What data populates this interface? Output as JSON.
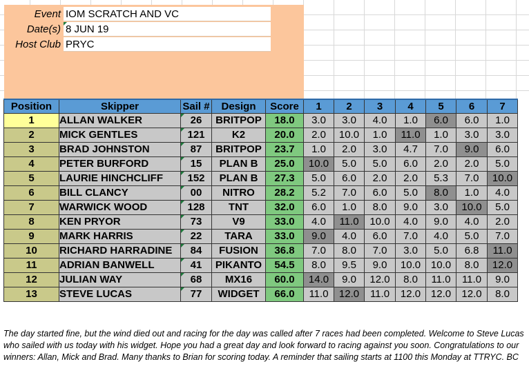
{
  "event_info": {
    "event_label": "Event",
    "event_value": "IOM SCRATCH AND VC",
    "date_label": "Date(s)",
    "date_value": "8 JUN 19",
    "club_label": "Host Club",
    "club_value": "PRYC"
  },
  "table": {
    "headers": [
      "Position",
      "Skipper",
      "Sail #",
      "Design",
      "Score",
      "1",
      "2",
      "3",
      "4",
      "5",
      "6",
      "7"
    ],
    "rows": [
      {
        "position": "1",
        "skipper": "ALLAN WALKER",
        "sail": "26",
        "design": "BRITPOP",
        "score": "18.0",
        "races": [
          "3.0",
          "3.0",
          "4.0",
          "1.0",
          "6.0",
          "6.0",
          "1.0"
        ],
        "discard": 4
      },
      {
        "position": "2",
        "skipper": "MICK GENTLES",
        "sail": "121",
        "design": "K2",
        "score": "20.0",
        "races": [
          "2.0",
          "10.0",
          "1.0",
          "11.0",
          "1.0",
          "3.0",
          "3.0"
        ],
        "discard": 3
      },
      {
        "position": "3",
        "skipper": "BRAD JOHNSTON",
        "sail": "87",
        "design": "BRITPOP",
        "score": "23.7",
        "races": [
          "1.0",
          "2.0",
          "3.0",
          "4.7",
          "7.0",
          "9.0",
          "6.0"
        ],
        "discard": 5
      },
      {
        "position": "4",
        "skipper": "PETER BURFORD",
        "sail": "15",
        "design": "PLAN B",
        "score": "25.0",
        "races": [
          "10.0",
          "5.0",
          "5.0",
          "6.0",
          "2.0",
          "2.0",
          "5.0"
        ],
        "discard": 0
      },
      {
        "position": "5",
        "skipper": "LAURIE HINCHCLIFF",
        "sail": "152",
        "design": "PLAN B",
        "score": "27.3",
        "races": [
          "5.0",
          "6.0",
          "2.0",
          "2.0",
          "5.3",
          "7.0",
          "10.0"
        ],
        "discard": 6
      },
      {
        "position": "6",
        "skipper": "BILL CLANCY",
        "sail": "00",
        "design": "NITRO",
        "score": "28.2",
        "races": [
          "5.2",
          "7.0",
          "6.0",
          "5.0",
          "8.0",
          "1.0",
          "4.0"
        ],
        "discard": 4
      },
      {
        "position": "7",
        "skipper": "WARWICK WOOD",
        "sail": "128",
        "design": "TNT",
        "score": "32.0",
        "races": [
          "6.0",
          "1.0",
          "8.0",
          "9.0",
          "3.0",
          "10.0",
          "5.0"
        ],
        "discard": 5
      },
      {
        "position": "8",
        "skipper": "KEN PRYOR",
        "sail": "73",
        "design": "V9",
        "score": "33.0",
        "races": [
          "4.0",
          "11.0",
          "10.0",
          "4.0",
          "9.0",
          "4.0",
          "2.0"
        ],
        "discard": 1
      },
      {
        "position": "9",
        "skipper": "MARK HARRIS",
        "sail": "22",
        "design": "TARA",
        "score": "33.0",
        "races": [
          "9.0",
          "4.0",
          "6.0",
          "7.0",
          "4.0",
          "5.0",
          "7.0"
        ],
        "discard": 0
      },
      {
        "position": "10",
        "skipper": "RICHARD HARRADINE",
        "sail": "84",
        "design": "FUSION",
        "score": "36.8",
        "races": [
          "7.0",
          "8.0",
          "7.0",
          "3.0",
          "5.0",
          "6.8",
          "11.0"
        ],
        "discard": 6
      },
      {
        "position": "11",
        "skipper": "ADRIAN BANWELL",
        "sail": "41",
        "design": "PIKANTO",
        "score": "54.5",
        "races": [
          "8.0",
          "9.5",
          "9.0",
          "10.0",
          "10.0",
          "8.0",
          "12.0"
        ],
        "discard": 6
      },
      {
        "position": "12",
        "skipper": "JULIAN WAY",
        "sail": "68",
        "design": "MX16",
        "score": "60.0",
        "races": [
          "14.0",
          "9.0",
          "12.0",
          "8.0",
          "11.0",
          "11.0",
          "9.0"
        ],
        "discard": 0
      },
      {
        "position": "13",
        "skipper": "STEVE LUCAS",
        "sail": "77",
        "design": "WIDGET",
        "score": "66.0",
        "races": [
          "11.0",
          "12.0",
          "11.0",
          "12.0",
          "12.0",
          "12.0",
          "8.0"
        ],
        "discard": 1
      }
    ]
  },
  "notes": "The day started fine, but the wind died out and racing for the day was called after 7 races had been completed. Welcome to Steve Lucas who sailed with us today with his widget. Hope you had a great day and look forward to racing against you soon. Congratulations to our winners: Allan, Mick and Brad. Many thanks to Brian for scoring today. A reminder that sailing starts at 1100 this Monday at TTRYC.  BC"
}
